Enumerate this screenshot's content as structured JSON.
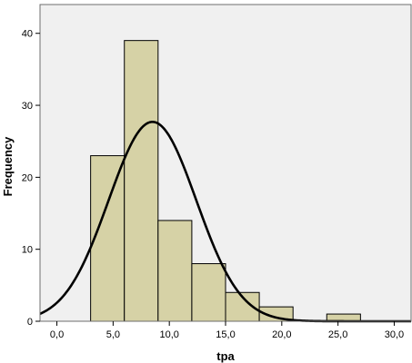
{
  "chart_data": {
    "type": "bar",
    "title": "",
    "xlabel": "tpa",
    "ylabel": "Frequency",
    "xlim": [
      -1.5,
      31.5
    ],
    "ylim": [
      0,
      44
    ],
    "x_ticks": [
      0,
      5,
      10,
      15,
      20,
      25,
      30
    ],
    "x_tick_labels": [
      "0,0",
      "5,0",
      "10,0",
      "15,0",
      "20,0",
      "25,0",
      "30,0"
    ],
    "y_ticks": [
      0,
      10,
      20,
      30,
      40
    ],
    "y_tick_labels": [
      "0",
      "10",
      "20",
      "30",
      "40"
    ],
    "bins": [
      {
        "start": 3,
        "end": 6,
        "value": 23
      },
      {
        "start": 6,
        "end": 9,
        "value": 39
      },
      {
        "start": 9,
        "end": 12,
        "value": 14
      },
      {
        "start": 12,
        "end": 15,
        "value": 8
      },
      {
        "start": 15,
        "end": 18,
        "value": 4
      },
      {
        "start": 18,
        "end": 21,
        "value": 2
      },
      {
        "start": 24,
        "end": 27,
        "value": 1
      }
    ],
    "normal_curve": {
      "mean": 8.5,
      "sd": 3.9,
      "peak": 27.7
    },
    "grid": false,
    "legend": "none",
    "colors": {
      "plot_background": "#f0f0f0",
      "bar_fill": "#d6d2a6",
      "bar_stroke": "#000000",
      "curve": "#000000",
      "frame": "#6e6e6e",
      "page_background": "#ffffff"
    }
  }
}
